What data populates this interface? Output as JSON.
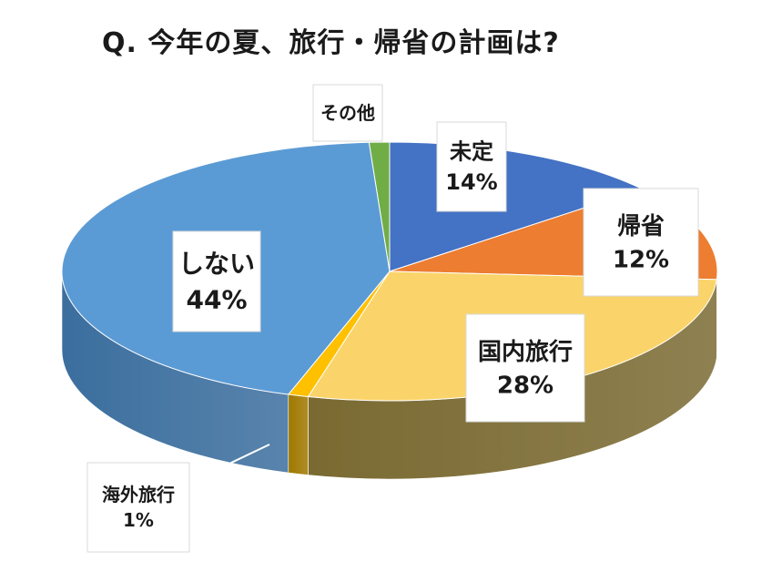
{
  "chart_data": {
    "type": "pie",
    "title": "Q. 今年の夏、旅行・帰省の計画は?",
    "slices": [
      {
        "label": "未定",
        "value": 14,
        "value_text": "14%",
        "color": "#4472C4",
        "side_color": "#2F5597"
      },
      {
        "label": "帰省",
        "value": 12,
        "value_text": "12%",
        "color": "#ED7D31",
        "side_color": "#A5521C"
      },
      {
        "label": "国内旅行",
        "value": 28,
        "value_text": "28%",
        "color": "#FAD46A",
        "side_color": "#7A6A32"
      },
      {
        "label": "海外旅行",
        "value": 1,
        "value_text": "1%",
        "color": "#FFC000",
        "side_color": "#A07800"
      },
      {
        "label": "しない",
        "value": 44,
        "value_text": "44%",
        "color": "#5B9BD5",
        "side_color": "#3B6E9E"
      },
      {
        "label": "その他",
        "value": 1,
        "value_text": "",
        "color": "#70AD47",
        "side_color": "#4E7A31"
      }
    ],
    "legend": "none"
  }
}
